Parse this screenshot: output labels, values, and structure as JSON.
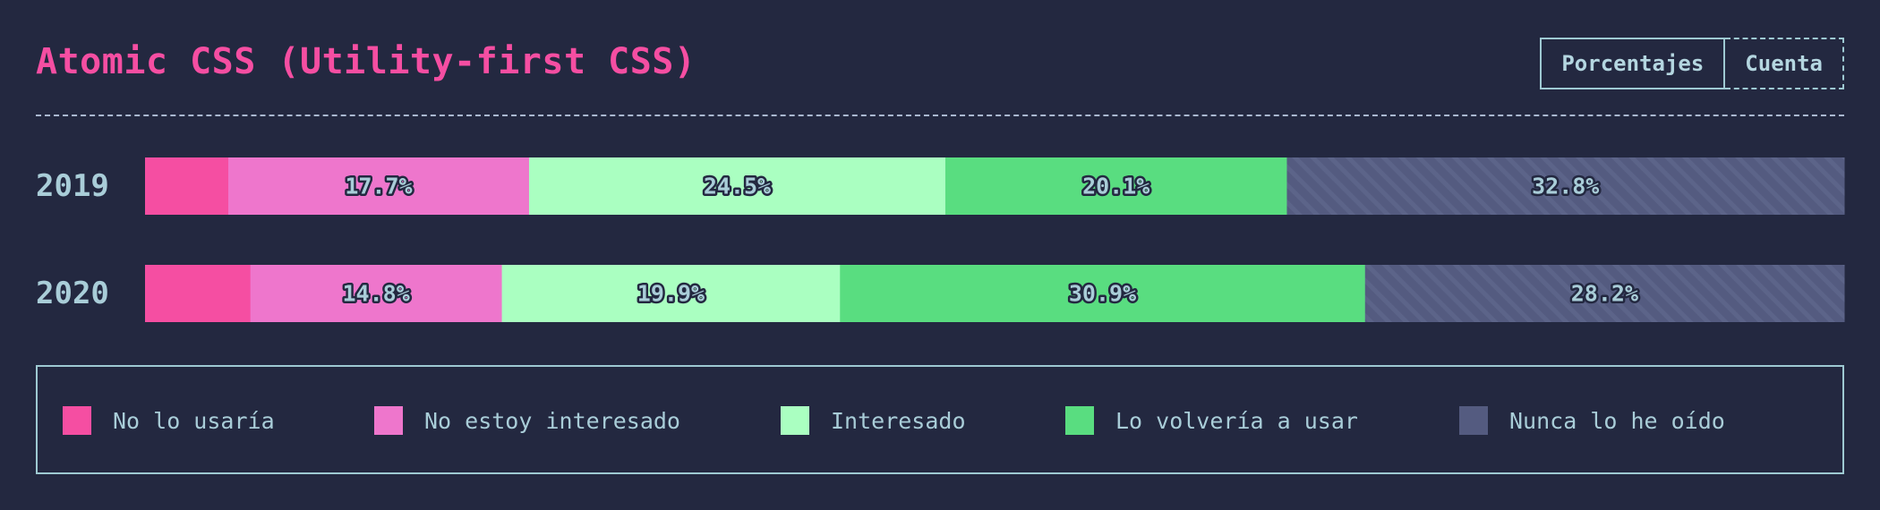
{
  "header": {
    "title": "Atomic CSS (Utility-first CSS)",
    "toggle": {
      "percentages_label": "Porcentajes",
      "count_label": "Cuenta"
    }
  },
  "colors": {
    "background": "#232840",
    "title": "#f54ea2",
    "text": "#a9cdd8",
    "border": "#9ec9d2"
  },
  "chart_data": {
    "type": "bar",
    "orientation": "horizontal",
    "stacked": true,
    "normalized": true,
    "title": "Atomic CSS (Utility-first CSS)",
    "categories": [
      "2019",
      "2020"
    ],
    "series": [
      {
        "name": "No lo usaría",
        "color": "#f54ea2",
        "values": [
          4.9,
          6.2
        ],
        "show_label": false
      },
      {
        "name": "No estoy interesado",
        "color": "#ee76cc",
        "values": [
          17.7,
          14.8
        ],
        "show_label": true
      },
      {
        "name": "Interesado",
        "color": "#aaffc1",
        "values": [
          24.5,
          19.9
        ],
        "show_label": true
      },
      {
        "name": "Lo volvería a usar",
        "color": "#59dd80",
        "values": [
          20.1,
          30.9
        ],
        "show_label": true
      },
      {
        "name": "Nunca lo he oído",
        "color": "#545b80",
        "values": [
          32.8,
          28.2
        ],
        "show_label": true,
        "pattern": "diagonal-stripes"
      }
    ],
    "xlim": [
      0,
      100
    ],
    "value_suffix": "%",
    "legend_position": "bottom"
  }
}
